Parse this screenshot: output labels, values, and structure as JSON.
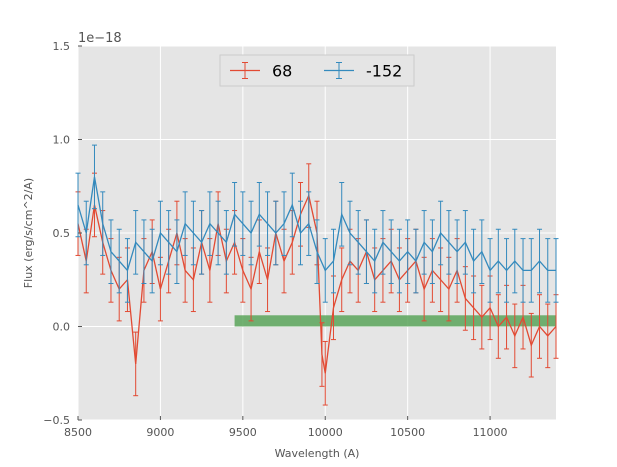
{
  "chart_data": {
    "type": "line",
    "title": "",
    "xlabel": "Wavelength (A)",
    "ylabel": "Flux (erg/s/cm^2/A)",
    "y_offset_label": "1e−18",
    "xlim": [
      8500,
      11400
    ],
    "ylim": [
      -0.5,
      1.5
    ],
    "xticks": [
      8500,
      9000,
      9500,
      10000,
      10500,
      11000
    ],
    "xtick_labels": [
      "8500",
      "9000",
      "9500",
      "10000",
      "10500",
      "11000"
    ],
    "yticks": [
      -0.5,
      0.0,
      0.5,
      1.0,
      1.5
    ],
    "ytick_labels": [
      "−0.5",
      "0.0",
      "0.5",
      "1.0",
      "1.5"
    ],
    "grid": true,
    "legend_position": "top-center",
    "series": [
      {
        "name": "68",
        "color": "#e24a33",
        "x": [
          8500,
          8550,
          8600,
          8650,
          8700,
          8750,
          8800,
          8850,
          8900,
          8950,
          9000,
          9050,
          9100,
          9150,
          9200,
          9250,
          9300,
          9350,
          9400,
          9450,
          9500,
          9550,
          9600,
          9650,
          9700,
          9750,
          9800,
          9850,
          9900,
          9950,
          9980,
          10000,
          10050,
          10100,
          10150,
          10200,
          10250,
          10300,
          10350,
          10400,
          10450,
          10500,
          10550,
          10600,
          10650,
          10700,
          10750,
          10800,
          10850,
          10900,
          10950,
          11000,
          11050,
          11100,
          11150,
          11200,
          11250,
          11300,
          11350,
          11400
        ],
        "y": [
          0.55,
          0.35,
          0.65,
          0.45,
          0.3,
          0.2,
          0.25,
          -0.2,
          0.3,
          0.4,
          0.2,
          0.35,
          0.5,
          0.3,
          0.25,
          0.45,
          0.3,
          0.55,
          0.35,
          0.45,
          0.3,
          0.2,
          0.4,
          0.25,
          0.5,
          0.35,
          0.45,
          0.6,
          0.7,
          0.5,
          -0.15,
          -0.25,
          0.1,
          0.25,
          0.35,
          0.3,
          0.4,
          0.25,
          0.3,
          0.35,
          0.25,
          0.3,
          0.35,
          0.2,
          0.3,
          0.25,
          0.2,
          0.3,
          0.15,
          0.1,
          0.05,
          0.1,
          0.0,
          0.05,
          -0.05,
          0.05,
          -0.1,
          0.0,
          -0.05,
          0.0
        ],
        "err": 0.17
      },
      {
        "name": "-152",
        "color": "#348abd",
        "x": [
          8500,
          8550,
          8600,
          8650,
          8700,
          8750,
          8800,
          8850,
          8900,
          8950,
          9000,
          9050,
          9100,
          9150,
          9200,
          9250,
          9300,
          9350,
          9400,
          9450,
          9500,
          9550,
          9600,
          9650,
          9700,
          9750,
          9800,
          9850,
          9900,
          9950,
          10000,
          10050,
          10100,
          10150,
          10200,
          10250,
          10300,
          10350,
          10400,
          10450,
          10500,
          10550,
          10600,
          10650,
          10700,
          10750,
          10800,
          10850,
          10900,
          10950,
          11000,
          11050,
          11100,
          11150,
          11200,
          11250,
          11300,
          11350,
          11400
        ],
        "y": [
          0.65,
          0.5,
          0.8,
          0.55,
          0.4,
          0.35,
          0.3,
          0.45,
          0.4,
          0.35,
          0.5,
          0.45,
          0.4,
          0.55,
          0.5,
          0.45,
          0.55,
          0.5,
          0.45,
          0.6,
          0.55,
          0.5,
          0.6,
          0.55,
          0.5,
          0.55,
          0.65,
          0.5,
          0.55,
          0.4,
          0.3,
          0.35,
          0.6,
          0.5,
          0.45,
          0.4,
          0.35,
          0.45,
          0.4,
          0.35,
          0.4,
          0.35,
          0.45,
          0.4,
          0.5,
          0.45,
          0.4,
          0.45,
          0.35,
          0.4,
          0.3,
          0.35,
          0.3,
          0.35,
          0.3,
          0.3,
          0.35,
          0.3,
          0.3
        ],
        "err": 0.17
      }
    ],
    "shaded_region": {
      "x_start": 9450,
      "x_end": 11400,
      "y_start": 0.0,
      "y_end": 0.06,
      "color": "#5aa55a"
    }
  }
}
